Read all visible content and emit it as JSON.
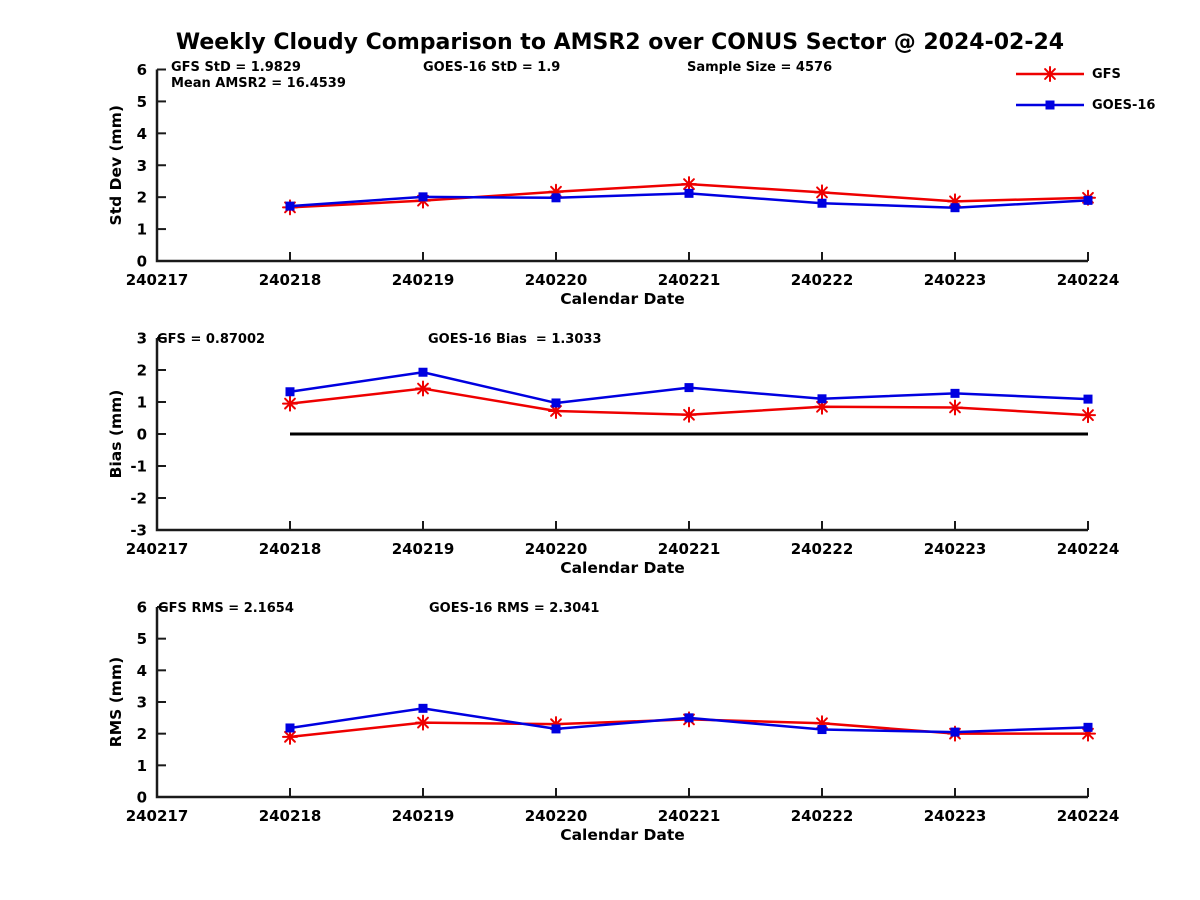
{
  "title": "Weekly Cloudy Comparison to AMSR2 over CONUS Sector @ 2024-02-24",
  "legend": {
    "items": [
      {
        "label": "GFS",
        "color": "#ee0000",
        "marker": "asterisk"
      },
      {
        "label": "GOES-16",
        "color": "#0000e0",
        "marker": "square"
      }
    ]
  },
  "colors": {
    "axis": "#1a1a1a",
    "zero_line": "#000000",
    "text": "#000000",
    "gfs": "#ee0000",
    "goes16": "#0000e0"
  },
  "chart_data": [
    {
      "name": "chart-stddev",
      "type": "line",
      "ylabel": "Std Dev (mm)",
      "xlabel": "Calendar Date",
      "ylim": [
        0,
        6
      ],
      "ytick_step": 1,
      "grid": false,
      "legend_position": "top-right-outside",
      "categories": [
        "240217",
        "240218",
        "240219",
        "240220",
        "240221",
        "240222",
        "240223",
        "240224"
      ],
      "annotations": [
        "GFS StD = 1.9829",
        "Mean AMSR2 = 16.4539",
        "GOES-16 StD = 1.9",
        "Sample Size = 4576"
      ],
      "zero_line": false,
      "series": [
        {
          "name": "GFS",
          "marker": "asterisk",
          "color": "#ee0000",
          "x_start": 1,
          "values": [
            1.68,
            1.89,
            2.17,
            2.41,
            2.15,
            1.87,
            1.98
          ]
        },
        {
          "name": "GOES-16",
          "marker": "square",
          "color": "#0000e0",
          "x_start": 1,
          "values": [
            1.72,
            2.01,
            1.98,
            2.12,
            1.81,
            1.67,
            1.9
          ]
        }
      ]
    },
    {
      "name": "chart-bias",
      "type": "line",
      "ylabel": "Bias (mm)",
      "xlabel": "Calendar Date",
      "ylim": [
        -3,
        3
      ],
      "ytick_step": 1,
      "grid": false,
      "categories": [
        "240217",
        "240218",
        "240219",
        "240220",
        "240221",
        "240222",
        "240223",
        "240224"
      ],
      "annotations": [
        "GFS = 0.87002",
        "GOES-16 Bias  = 1.3033"
      ],
      "zero_line": true,
      "series": [
        {
          "name": "GFS",
          "marker": "asterisk",
          "color": "#ee0000",
          "x_start": 1,
          "values": [
            0.95,
            1.42,
            0.72,
            0.6,
            0.85,
            0.83,
            0.59
          ]
        },
        {
          "name": "GOES-16",
          "marker": "square",
          "color": "#0000e0",
          "x_start": 1,
          "values": [
            1.32,
            1.93,
            0.97,
            1.45,
            1.1,
            1.27,
            1.09
          ]
        }
      ]
    },
    {
      "name": "chart-rms",
      "type": "line",
      "ylabel": "RMS (mm)",
      "xlabel": "Calendar Date",
      "ylim": [
        0,
        6
      ],
      "ytick_step": 1,
      "grid": false,
      "categories": [
        "240217",
        "240218",
        "240219",
        "240220",
        "240221",
        "240222",
        "240223",
        "240224"
      ],
      "annotations": [
        "GFS RMS = 2.1654",
        "GOES-16 RMS = 2.3041"
      ],
      "zero_line": false,
      "series": [
        {
          "name": "GFS",
          "marker": "asterisk",
          "color": "#ee0000",
          "x_start": 1,
          "values": [
            1.9,
            2.35,
            2.3,
            2.45,
            2.33,
            2.0,
            2.0
          ]
        },
        {
          "name": "GOES-16",
          "marker": "square",
          "color": "#0000e0",
          "x_start": 1,
          "values": [
            2.18,
            2.8,
            2.15,
            2.5,
            2.13,
            2.05,
            2.2
          ]
        }
      ]
    }
  ]
}
